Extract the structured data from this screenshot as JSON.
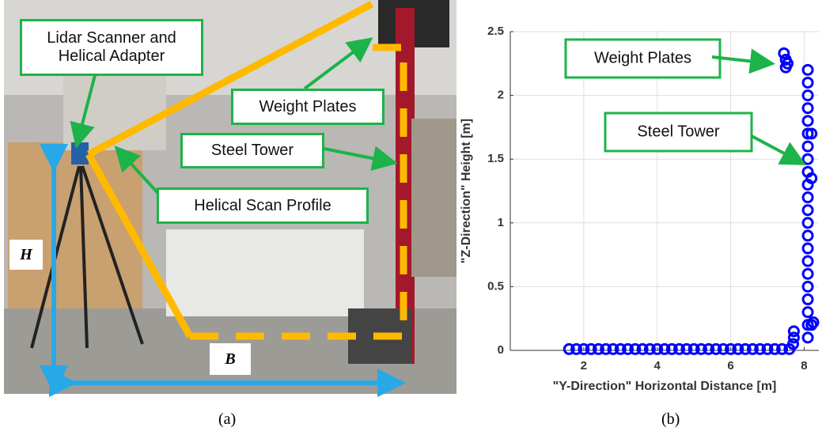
{
  "panel_a": {
    "labels": [
      "Lidar Scanner and Helical Adapter",
      "Weight Plates",
      "Steel Tower",
      "Helical Scan Profile"
    ],
    "dimension_h": "H",
    "dimension_b": "B",
    "caption": "(a)"
  },
  "chart_data": {
    "type": "scatter",
    "x_label": "\"Y-Direction\" Horizontal Distance [m]",
    "y_label": "\"Z-Direction\" Height [m]",
    "xlim": [
      0,
      8.4
    ],
    "ylim": [
      0,
      2.5
    ],
    "xticks": [
      2,
      4,
      6,
      8
    ],
    "yticks": [
      0,
      0.5,
      1,
      1.5,
      2,
      2.5
    ],
    "grid": true,
    "annotations": [
      "Weight Plates",
      "Steel Tower"
    ],
    "caption": "(b)",
    "series": [
      {
        "color": "#0000ff",
        "x": [
          1.6,
          1.8,
          2.0,
          2.2,
          2.4,
          2.6,
          2.8,
          3.0,
          3.2,
          3.4,
          3.6,
          3.8,
          4.0,
          4.2,
          4.4,
          4.6,
          4.8,
          5.0,
          5.2,
          5.4,
          5.6,
          5.8,
          6.0,
          6.2,
          6.4,
          6.6,
          6.8,
          7.0,
          7.2,
          7.4,
          7.6,
          7.7,
          7.72,
          7.72,
          8.1,
          8.1,
          8.1,
          8.1,
          8.1,
          8.1,
          8.1,
          8.1,
          8.1,
          8.1,
          8.1,
          8.1,
          8.1,
          8.1,
          8.1,
          8.1,
          8.1,
          8.1,
          8.1,
          8.1,
          8.1,
          8.1,
          8.2,
          8.2,
          8.25,
          8.2,
          7.45,
          7.5,
          7.5,
          7.55
        ],
        "y": [
          0.01,
          0.01,
          0.01,
          0.01,
          0.01,
          0.01,
          0.01,
          0.01,
          0.01,
          0.01,
          0.01,
          0.01,
          0.01,
          0.01,
          0.01,
          0.01,
          0.01,
          0.01,
          0.01,
          0.01,
          0.01,
          0.01,
          0.01,
          0.01,
          0.01,
          0.01,
          0.01,
          0.01,
          0.01,
          0.01,
          0.01,
          0.05,
          0.1,
          0.15,
          0.1,
          0.2,
          0.3,
          0.4,
          0.5,
          0.6,
          0.7,
          0.8,
          0.9,
          1.0,
          1.1,
          1.2,
          1.3,
          1.4,
          1.5,
          1.6,
          1.7,
          1.8,
          1.9,
          2.0,
          2.1,
          2.2,
          1.7,
          0.2,
          0.22,
          1.35,
          2.33,
          2.28,
          2.22,
          2.25
        ]
      }
    ]
  }
}
